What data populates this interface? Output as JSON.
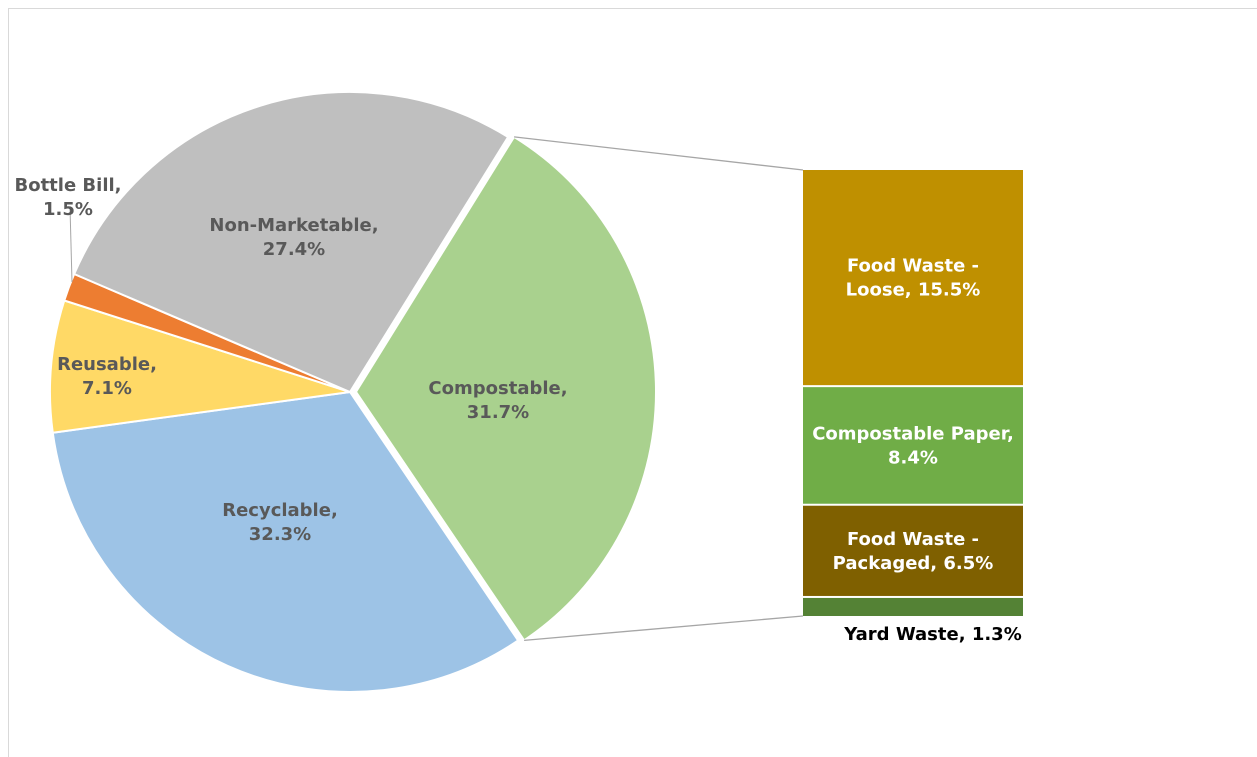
{
  "chart_data": {
    "type": "bar-of-pie",
    "pie": {
      "slices": [
        {
          "label_lines": [
            "Compostable,",
            "31.7%"
          ],
          "name": "Compostable",
          "value": 31.7,
          "color": "#a9d18e",
          "text_color": "#595959"
        },
        {
          "label_lines": [
            "Recyclable,",
            "32.3%"
          ],
          "name": "Recyclable",
          "value": 32.3,
          "color": "#9dc3e6",
          "text_color": "#595959"
        },
        {
          "label_lines": [
            "Reusable,",
            "7.1%"
          ],
          "name": "Reusable",
          "value": 7.1,
          "color": "#ffd966",
          "text_color": "#595959"
        },
        {
          "label_lines": [
            "Bottle Bill,",
            "1.5%"
          ],
          "name": "Bottle Bill",
          "value": 1.5,
          "color": "#ed7d31",
          "text_color": "#595959"
        },
        {
          "label_lines": [
            "Non-Marketable,",
            "27.4%"
          ],
          "name": "Non-Marketable",
          "value": 27.4,
          "color": "#bfbfbf",
          "text_color": "#595959"
        }
      ]
    },
    "bar": {
      "of": "Compostable",
      "segments": [
        {
          "label_lines": [
            "Food Waste -",
            "Loose, 15.5%"
          ],
          "name": "Food Waste - Loose",
          "value": 15.5,
          "color": "#bf9000",
          "text_color": "#ffffff"
        },
        {
          "label_lines": [
            "Compostable Paper,",
            "8.4%"
          ],
          "name": "Compostable Paper",
          "value": 8.4,
          "color": "#70ad47",
          "text_color": "#ffffff"
        },
        {
          "label_lines": [
            "Food Waste -",
            "Packaged, 6.5%"
          ],
          "name": "Food Waste - Packaged",
          "value": 6.5,
          "color": "#7f6000",
          "text_color": "#ffffff"
        },
        {
          "label_lines": [
            "Yard Waste, 1.3%"
          ],
          "name": "Yard Waste",
          "value": 1.3,
          "color": "#548235",
          "text_color": "#000000"
        }
      ]
    },
    "connector_color": "#a6a6a6"
  }
}
